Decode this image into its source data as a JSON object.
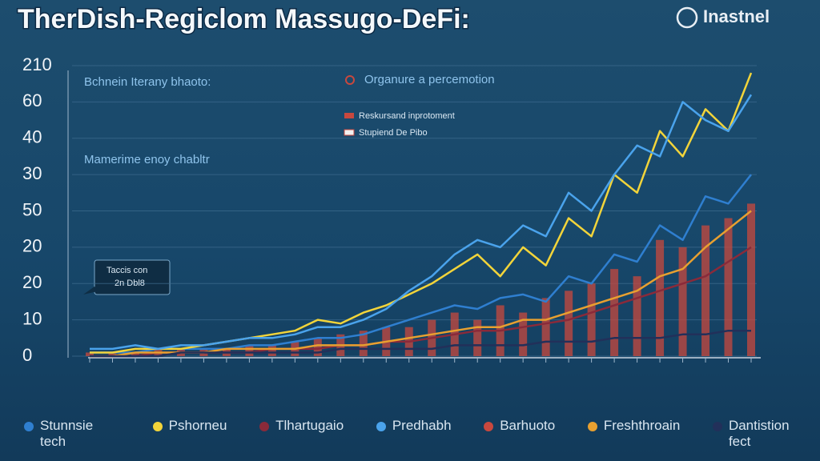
{
  "chart_data": {
    "type": "line",
    "title": "TherDish-Regiclom Massugo-DeFi:",
    "logo": "Inastnel",
    "annotations": [
      "Bchnein Iterany bhaoto:",
      "Organure a percemotion",
      "Reskursand inprotoment",
      "Stupiend De Pibo",
      "Mamerime enoy chabltr",
      "Taccis con",
      "2n Dbl8"
    ],
    "categories": [
      null,
      null,
      null,
      null,
      null,
      null,
      null,
      null,
      null,
      null,
      null,
      null,
      null,
      null,
      null,
      null,
      null,
      null,
      null,
      null,
      null,
      null,
      null,
      null,
      null,
      null,
      null,
      null,
      null,
      null
    ],
    "ylim": [
      0,
      80
    ],
    "yticks": [
      0,
      10,
      20,
      {
        "value": 30,
        "label": "20"
      },
      {
        "value": 40,
        "label": "50"
      },
      {
        "value": 50,
        "label": "30"
      },
      {
        "value": 60,
        "label": "40"
      },
      {
        "value": 70,
        "label": "60"
      },
      {
        "value": 80,
        "label": "210"
      }
    ],
    "grid": true,
    "series": [
      {
        "name": "Stunnsie tech",
        "type": "line",
        "color": "#2f7fd0",
        "values": [
          1,
          1,
          1,
          2,
          2,
          2,
          2,
          3,
          3,
          4,
          5,
          5,
          6,
          8,
          10,
          12,
          14,
          13,
          16,
          17,
          15,
          22,
          20,
          28,
          26,
          36,
          32,
          44,
          42,
          50
        ]
      },
      {
        "name": "Pshorneu",
        "type": "line",
        "color": "#f2d43a",
        "values": [
          1,
          1,
          2,
          2,
          2,
          3,
          4,
          5,
          6,
          7,
          10,
          9,
          12,
          14,
          17,
          20,
          24,
          28,
          22,
          30,
          25,
          38,
          33,
          50,
          45,
          62,
          55,
          68,
          62,
          78
        ]
      },
      {
        "name": "Tlhartugaio",
        "type": "line",
        "color": "#8a2a3a",
        "values": [
          0,
          0,
          0,
          1,
          1,
          1,
          1,
          1,
          2,
          2,
          2,
          3,
          3,
          4,
          4,
          5,
          6,
          7,
          7,
          8,
          9,
          10,
          12,
          14,
          16,
          18,
          20,
          22,
          26,
          30
        ]
      },
      {
        "name": "Predhabh",
        "type": "line",
        "color": "#4aa3ec",
        "values": [
          2,
          2,
          3,
          2,
          3,
          3,
          4,
          5,
          5,
          6,
          8,
          8,
          10,
          13,
          18,
          22,
          28,
          32,
          30,
          36,
          33,
          45,
          40,
          50,
          58,
          55,
          70,
          65,
          62,
          72
        ]
      },
      {
        "name": "Barhuoto",
        "type": "bar",
        "color": "#c8483e",
        "values": [
          1,
          1,
          1,
          2,
          2,
          2,
          2,
          3,
          3,
          4,
          5,
          6,
          7,
          8,
          8,
          10,
          12,
          10,
          14,
          12,
          16,
          18,
          20,
          24,
          22,
          32,
          30,
          36,
          38,
          42
        ]
      },
      {
        "name": "Freshthroain",
        "type": "line",
        "color": "#e8a030",
        "values": [
          0,
          0,
          1,
          1,
          1,
          1,
          2,
          2,
          2,
          2,
          3,
          3,
          3,
          4,
          5,
          6,
          7,
          8,
          8,
          10,
          10,
          12,
          14,
          16,
          18,
          22,
          24,
          30,
          35,
          40
        ]
      },
      {
        "name": "Dantistion fect",
        "type": "line",
        "color": "#22305a",
        "values": [
          0,
          0,
          0,
          0,
          1,
          1,
          1,
          1,
          1,
          1,
          1,
          2,
          2,
          2,
          2,
          2,
          3,
          3,
          3,
          3,
          4,
          4,
          4,
          5,
          5,
          5,
          6,
          6,
          7,
          7
        ]
      }
    ]
  }
}
